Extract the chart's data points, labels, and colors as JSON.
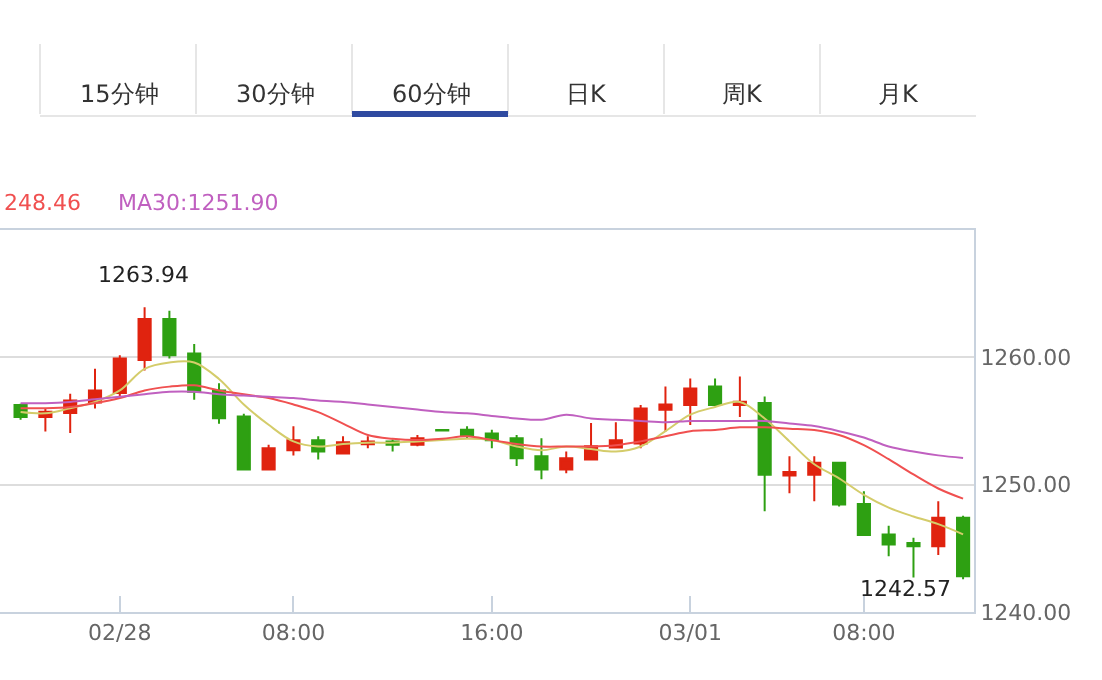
{
  "chart_data": {
    "type": "candlestick",
    "categories": [
      null,
      null,
      null,
      null,
      "02/28",
      null,
      null,
      null,
      null,
      null,
      null,
      "08:00",
      null,
      null,
      null,
      null,
      null,
      null,
      null,
      "16:00",
      null,
      null,
      null,
      null,
      null,
      null,
      null,
      "03/01",
      null,
      null,
      null,
      null,
      null,
      null,
      "08:00",
      null,
      null,
      null,
      null
    ],
    "ohlc": [
      [
        1256.25,
        1256.35,
        1255.1,
        1255.31
      ],
      [
        1255.31,
        1255.99,
        1254.17,
        1255.73
      ],
      [
        1255.63,
        1257.14,
        1254.06,
        1256.61
      ],
      [
        1256.46,
        1259.11,
        1255.99,
        1257.4
      ],
      [
        1257.19,
        1260.16,
        1256.88,
        1259.9
      ],
      [
        1259.79,
        1263.94,
        1258.96,
        1263.02
      ],
      [
        1263.02,
        1263.65,
        1259.9,
        1260.16
      ],
      [
        1260.31,
        1261.04,
        1256.67,
        1257.29
      ],
      [
        1257.4,
        1257.97,
        1254.79,
        1255.21
      ],
      [
        1255.36,
        1255.57,
        1251.2,
        1251.2
      ],
      [
        1251.2,
        1253.13,
        1251.2,
        1252.86
      ],
      [
        1252.71,
        1254.58,
        1252.29,
        1253.49
      ],
      [
        1253.49,
        1253.8,
        1251.98,
        1252.6
      ],
      [
        1252.45,
        1253.8,
        1252.45,
        1253.33
      ],
      [
        1253.18,
        1253.8,
        1252.86,
        1253.39
      ],
      [
        1253.39,
        1253.54,
        1252.6,
        1253.13
      ],
      [
        1253.13,
        1253.91,
        1253.02,
        1253.65
      ],
      [
        1254.3,
        1254.3,
        1254.25,
        1254.25
      ],
      [
        1254.32,
        1254.58,
        1253.65,
        1253.85
      ],
      [
        1254.01,
        1254.32,
        1252.86,
        1253.49
      ],
      [
        1253.65,
        1253.91,
        1251.46,
        1252.08
      ],
      [
        1252.24,
        1253.65,
        1250.42,
        1251.2
      ],
      [
        1251.2,
        1252.6,
        1250.89,
        1252.08
      ],
      [
        1251.98,
        1254.84,
        1251.98,
        1253.02
      ],
      [
        1252.92,
        1254.9,
        1252.92,
        1253.49
      ],
      [
        1253.23,
        1256.25,
        1252.86,
        1255.99
      ],
      [
        1255.89,
        1257.71,
        1254.17,
        1256.3
      ],
      [
        1256.25,
        1258.33,
        1254.69,
        1257.55
      ],
      [
        1257.71,
        1258.33,
        1256.25,
        1256.25
      ],
      [
        1256.25,
        1258.49,
        1255.31,
        1256.51
      ],
      [
        1256.41,
        1256.93,
        1247.92,
        1250.78
      ],
      [
        1250.73,
        1252.24,
        1249.32,
        1250.99
      ],
      [
        1250.78,
        1252.24,
        1248.7,
        1251.72
      ],
      [
        1251.72,
        1251.72,
        1248.28,
        1248.44
      ],
      [
        1248.49,
        1249.48,
        1246.04,
        1246.04
      ],
      [
        1246.09,
        1246.77,
        1244.38,
        1245.31
      ],
      [
        1245.42,
        1245.83,
        1242.71,
        1245.16
      ],
      [
        1245.16,
        1248.7,
        1244.48,
        1247.4
      ],
      [
        1247.4,
        1247.55,
        1242.57,
        1242.81
      ]
    ],
    "colors": [
      "#2ea012",
      "#e0230f",
      "#e0230f",
      "#e0230f",
      "#e0230f",
      "#e0230f",
      "#2ea012",
      "#2ea012",
      "#2ea012",
      "#2ea012",
      "#e0230f",
      "#e0230f",
      "#2ea012",
      "#e0230f",
      "#e0230f",
      "#2ea012",
      "#e0230f",
      "#2ea012",
      "#2ea012",
      "#2ea012",
      "#2ea012",
      "#2ea012",
      "#e0230f",
      "#e0230f",
      "#e0230f",
      "#e0230f",
      "#e0230f",
      "#e0230f",
      "#2ea012",
      "#e0230f",
      "#2ea012",
      "#e0230f",
      "#e0230f",
      "#2ea012",
      "#2ea012",
      "#2ea012",
      "#2ea012",
      "#e0230f",
      "#2ea012"
    ],
    "series": [
      {
        "type": "line",
        "color": "#d4cc6a",
        "values": [
          1255.7,
          1255.6,
          1256.0,
          1256.5,
          1257.4,
          1259.1,
          1259.6,
          1259.6,
          1258.3,
          1256.3,
          1254.7,
          1253.4,
          1253.0,
          1253.2,
          1253.3,
          1253.3,
          1253.4,
          1253.5,
          1253.6,
          1253.5,
          1253.0,
          1252.7,
          1253.0,
          1252.8,
          1252.6,
          1253.0,
          1254.2,
          1255.5,
          1256.1,
          1256.5,
          1255.2,
          1253.4,
          1251.6,
          1250.5,
          1249.2,
          1248.2,
          1247.5,
          1246.9,
          1246.1
        ]
      },
      {
        "type": "line",
        "color": "#f05050",
        "values": [
          1256.0,
          1256.0,
          1256.1,
          1256.4,
          1256.8,
          1257.4,
          1257.7,
          1257.8,
          1257.4,
          1257.1,
          1256.8,
          1256.3,
          1255.7,
          1254.8,
          1253.9,
          1253.6,
          1253.5,
          1253.6,
          1253.8,
          1253.5,
          1253.2,
          1253.0,
          1253.0,
          1253.0,
          1253.1,
          1253.4,
          1253.8,
          1254.2,
          1254.3,
          1254.5,
          1254.5,
          1254.4,
          1254.3,
          1253.9,
          1253.1,
          1252.0,
          1250.8,
          1249.7,
          1248.9
        ]
      },
      {
        "type": "line",
        "color": "#c060c0",
        "values": [
          1256.4,
          1256.4,
          1256.5,
          1256.7,
          1256.9,
          1257.1,
          1257.3,
          1257.3,
          1257.1,
          1257.0,
          1256.9,
          1256.8,
          1256.6,
          1256.5,
          1256.3,
          1256.1,
          1255.9,
          1255.7,
          1255.6,
          1255.4,
          1255.2,
          1255.1,
          1255.5,
          1255.2,
          1255.1,
          1255.0,
          1254.9,
          1255.0,
          1255.0,
          1255.0,
          1255.0,
          1254.8,
          1254.6,
          1254.2,
          1253.7,
          1253.0,
          1252.6,
          1252.3,
          1252.1
        ]
      }
    ],
    "ylim": [
      1240,
      1270
    ],
    "yticks": [
      {
        "value": 1240,
        "label": "1240.00"
      },
      {
        "value": 1250,
        "label": "1250.00"
      },
      {
        "value": 1260,
        "label": "1260.00"
      }
    ],
    "grid": "y",
    "annotations": [
      "15分钟",
      "30分钟",
      "60分钟",
      "日K",
      "周K",
      "月K",
      "248.46",
      "MA30:1251.90",
      {
        "text": "1263.94",
        "y": 1263.94
      },
      {
        "text": "1242.57",
        "y": 1242.57
      }
    ]
  }
}
